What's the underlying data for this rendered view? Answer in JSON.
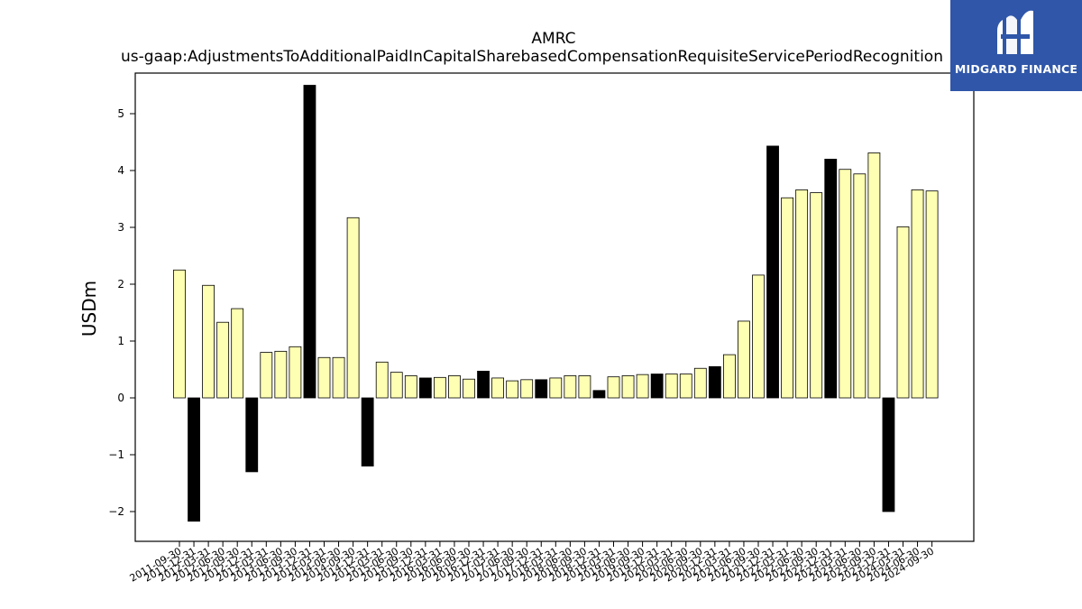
{
  "chart_data": {
    "type": "bar",
    "title": "AMRC",
    "subtitle": "us-gaap:AdjustmentsToAdditionalPaidInCapitalSharebasedCompensationRequisiteServicePeriodRecognition",
    "ylabel": "USDm",
    "xlabel": "",
    "ylim": [
      -2.35,
      5.7
    ],
    "yticks": [
      -2,
      -1,
      0,
      1,
      2,
      3,
      4,
      5
    ],
    "grid": false,
    "bar_fill_color": "#ffffb3",
    "highlight_color": "#000000",
    "categories": [
      "2011-09-30",
      "2011-12-31",
      "2012-03-31",
      "2012-06-30",
      "2012-09-30",
      "2012-12-31",
      "2013-03-31",
      "2013-06-30",
      "2013-09-30",
      "2013-12-31",
      "2014-03-31",
      "2014-06-30",
      "2014-09-30",
      "2014-12-31",
      "2015-03-31",
      "2015-06-30",
      "2015-09-30",
      "2015-12-31",
      "2016-03-31",
      "2016-06-30",
      "2016-09-30",
      "2016-12-31",
      "2017-03-31",
      "2017-06-30",
      "2017-09-30",
      "2017-12-31",
      "2018-03-31",
      "2018-06-30",
      "2018-09-30",
      "2018-12-31",
      "2019-03-31",
      "2019-06-30",
      "2019-09-30",
      "2019-12-31",
      "2020-03-31",
      "2020-06-30",
      "2020-09-30",
      "2020-12-31",
      "2021-03-31",
      "2021-06-30",
      "2021-09-30",
      "2021-12-31",
      "2022-03-31",
      "2022-06-30",
      "2022-09-30",
      "2022-12-31",
      "2023-03-31",
      "2023-06-30",
      "2023-09-30",
      "2023-12-31",
      "2024-03-31",
      "2024-06-30",
      "2024-09-30"
    ],
    "values": [
      2.25,
      -2.17,
      1.98,
      1.33,
      1.57,
      -1.3,
      0.8,
      0.82,
      0.9,
      5.5,
      0.71,
      0.71,
      3.17,
      -1.2,
      0.63,
      0.45,
      0.39,
      0.35,
      0.36,
      0.39,
      0.33,
      0.47,
      0.35,
      0.3,
      0.32,
      0.32,
      0.35,
      0.39,
      0.39,
      0.13,
      0.37,
      0.39,
      0.41,
      0.42,
      0.42,
      0.42,
      0.52,
      0.55,
      0.76,
      1.35,
      2.16,
      4.43,
      3.52,
      3.66,
      3.61,
      4.2,
      4.02,
      3.94,
      4.31,
      -2.0,
      3.01,
      3.66,
      3.64
    ],
    "highlighted": [
      false,
      true,
      false,
      false,
      false,
      true,
      false,
      false,
      false,
      true,
      false,
      false,
      false,
      true,
      false,
      false,
      false,
      true,
      false,
      false,
      false,
      true,
      false,
      false,
      false,
      true,
      false,
      false,
      false,
      true,
      false,
      false,
      false,
      true,
      false,
      false,
      false,
      true,
      false,
      false,
      false,
      true,
      false,
      false,
      false,
      true,
      false,
      false,
      false,
      true,
      false,
      false,
      false
    ]
  },
  "logo": {
    "text": "MIDGARD FINANCE",
    "color": "#2f56a8"
  }
}
